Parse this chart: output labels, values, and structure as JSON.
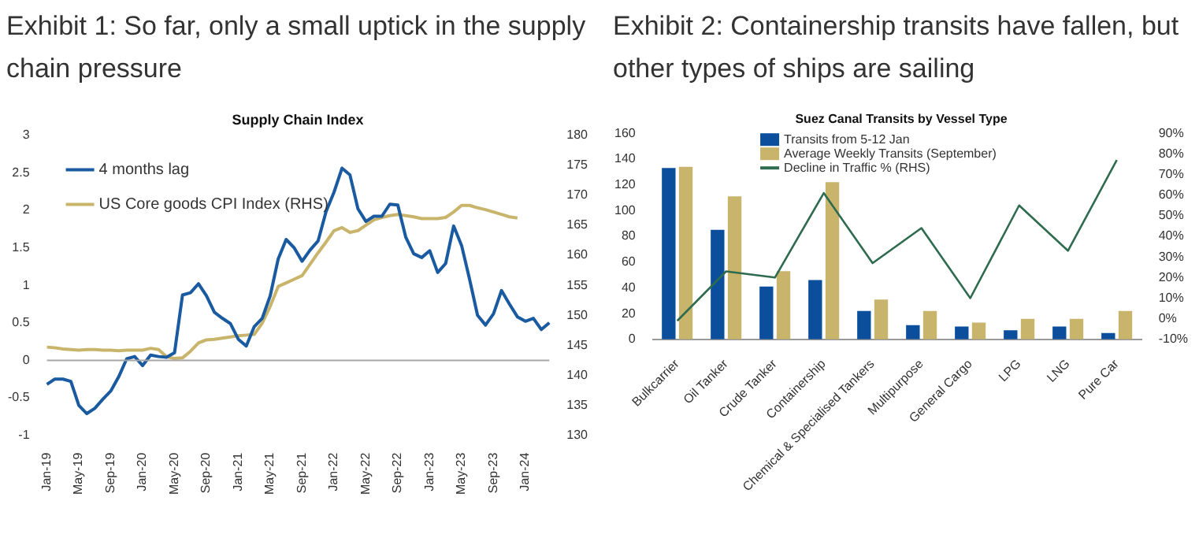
{
  "chart_data": [
    {
      "type": "line",
      "title": "Exhibit 1:    So far, only a small uptick in the supply chain pressure",
      "subtitle": "Supply Chain Index",
      "legend": "top left",
      "categories": [
        "Jan-19",
        null,
        null,
        null,
        "May-19",
        null,
        null,
        null,
        "Sep-19",
        null,
        null,
        null,
        "Jan-20",
        null,
        null,
        null,
        "May-20",
        null,
        null,
        null,
        "Sep-20",
        null,
        null,
        null,
        "Jan-21",
        null,
        null,
        null,
        "May-21",
        null,
        null,
        null,
        "Sep-21",
        null,
        null,
        null,
        "Jan-22",
        null,
        null,
        null,
        "May-22",
        null,
        null,
        null,
        "Sep-22",
        null,
        null,
        null,
        "Jan-23",
        null,
        null,
        null,
        "May-23",
        null,
        null,
        null,
        "Sep-23",
        null,
        null,
        null,
        "Jan-24",
        null,
        null,
        null
      ],
      "ylim": [
        -1,
        3
      ],
      "yticks": [
        -1,
        -0.5,
        0,
        0.5,
        1,
        1.5,
        2,
        2.5,
        3
      ],
      "y2lim": [
        130,
        180
      ],
      "y2ticks": [
        130,
        135,
        140,
        145,
        150,
        155,
        160,
        165,
        170,
        175,
        180
      ],
      "ref_lines": [
        {
          "axis": "y",
          "value": 0,
          "color": "#a6a6a6"
        }
      ],
      "series": [
        {
          "name": "4 months lag",
          "color": "#1a5aa0",
          "values": [
            -0.32,
            -0.25,
            -0.25,
            -0.28,
            -0.6,
            -0.71,
            -0.64,
            -0.52,
            -0.41,
            -0.22,
            0.02,
            0.05,
            -0.07,
            0.07,
            0.05,
            0.04,
            0.1,
            0.87,
            0.9,
            1.02,
            0.86,
            0.64,
            0.56,
            0.49,
            0.28,
            0.19,
            0.45,
            0.56,
            0.86,
            1.35,
            1.61,
            1.5,
            1.32,
            1.47,
            1.59,
            1.98,
            2.24,
            2.56,
            2.47,
            2.02,
            1.85,
            1.92,
            1.92,
            2.08,
            2.07,
            1.64,
            1.42,
            1.37,
            1.46,
            1.17,
            1.29,
            1.79,
            1.53,
            1.08,
            0.6,
            0.47,
            0.62,
            0.93,
            0.75,
            0.58,
            0.52,
            0.56,
            0.41,
            0.5
          ]
        },
        {
          "name": "US Core goods CPI Index (RHS)",
          "color": "#c9b46c",
          "axis": "y2",
          "values": [
            144.7,
            144.6,
            144.4,
            144.3,
            144.2,
            144.3,
            144.3,
            144.2,
            144.2,
            144.1,
            144.2,
            144.2,
            144.2,
            144.5,
            144.3,
            143.1,
            142.8,
            142.9,
            144.0,
            145.4,
            145.9,
            146.0,
            146.2,
            146.4,
            146.6,
            146.7,
            146.8,
            148.7,
            151.5,
            154.8,
            155.4,
            156.0,
            156.6,
            158.5,
            160.4,
            162.2,
            164.1,
            164.6,
            163.8,
            164.1,
            165.0,
            165.9,
            166.3,
            166.6,
            166.8,
            166.6,
            166.4,
            166.1,
            166.1,
            166.1,
            166.3,
            167.2,
            168.3,
            168.3,
            167.9,
            167.6,
            167.2,
            166.8,
            166.4,
            166.2,
            null,
            null,
            null,
            null
          ]
        }
      ]
    },
    {
      "type": "bar",
      "title": "Exhibit 2:    Containership transits have fallen, but other types of ships are sailing",
      "subtitle": "Suez Canal Transits by Vessel Type",
      "legend": "top right",
      "categories": [
        "Bulkcarrier",
        "Oil Tanker",
        "Crude Tanker",
        "Containership",
        "Chemical & Specialised Tankers",
        "Multipurpose",
        "General Cargo",
        "LPG",
        "LNG",
        "Pure Car"
      ],
      "ylim": [
        0,
        160
      ],
      "yticks": [
        0,
        20,
        40,
        60,
        80,
        100,
        120,
        140,
        160
      ],
      "y2lim": [
        -10,
        90
      ],
      "y2ticks": [
        {
          "value": -10,
          "label": "-10%"
        },
        {
          "value": 0,
          "label": "0%"
        },
        {
          "value": 10,
          "label": "10%"
        },
        {
          "value": 20,
          "label": "20%"
        },
        {
          "value": 30,
          "label": "30%"
        },
        {
          "value": 40,
          "label": "40%"
        },
        {
          "value": 50,
          "label": "50%"
        },
        {
          "value": 60,
          "label": "60%"
        },
        {
          "value": 70,
          "label": "70%"
        },
        {
          "value": 80,
          "label": "80%"
        },
        {
          "value": 90,
          "label": "90%"
        }
      ],
      "series": [
        {
          "name": "Transits from 5-12 Jan",
          "color": "#0b4f9c",
          "values": [
            133,
            85,
            41,
            46,
            22,
            11,
            10,
            7,
            10,
            5
          ]
        },
        {
          "name": "Average Weekly Transits (September)",
          "color": "#c9b46c",
          "values": [
            134,
            111,
            53,
            122,
            31,
            22,
            13,
            16,
            16,
            22
          ]
        },
        {
          "name": "Decline in Traffic % (RHS)",
          "type": "line",
          "axis": "y2",
          "color": "#2e6b4f",
          "values": [
            -1,
            23,
            20,
            61,
            27,
            44,
            10,
            55,
            33,
            77
          ]
        }
      ]
    }
  ]
}
